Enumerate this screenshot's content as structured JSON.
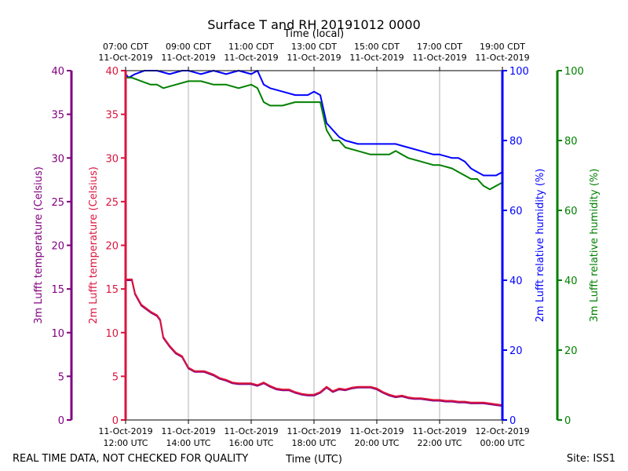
{
  "chart_data": {
    "type": "line",
    "title": "Surface T and RH 20191012 0000",
    "top_axis_label": "Time (local)",
    "xlabel": "Time (UTC)",
    "footer_left": "REAL TIME DATA, NOT CHECKED FOR QUALITY",
    "footer_right": "Site: ISS1",
    "x_range_hours_utc": [
      12,
      24
    ],
    "bottom_ticks": [
      {
        "h": 12,
        "line1": "11-Oct-2019",
        "line2": "12:00 UTC"
      },
      {
        "h": 14,
        "line1": "11-Oct-2019",
        "line2": "14:00 UTC"
      },
      {
        "h": 16,
        "line1": "11-Oct-2019",
        "line2": "16:00 UTC"
      },
      {
        "h": 18,
        "line1": "11-Oct-2019",
        "line2": "18:00 UTC"
      },
      {
        "h": 20,
        "line1": "11-Oct-2019",
        "line2": "20:00 UTC"
      },
      {
        "h": 22,
        "line1": "11-Oct-2019",
        "line2": "22:00 UTC"
      },
      {
        "h": 24,
        "line1": "12-Oct-2019",
        "line2": "00:00 UTC"
      }
    ],
    "top_ticks": [
      {
        "h": 12,
        "line1": "07:00 CDT",
        "line2": "11-Oct-2019"
      },
      {
        "h": 14,
        "line1": "09:00 CDT",
        "line2": "11-Oct-2019"
      },
      {
        "h": 16,
        "line1": "11:00 CDT",
        "line2": "11-Oct-2019"
      },
      {
        "h": 18,
        "line1": "13:00 CDT",
        "line2": "11-Oct-2019"
      },
      {
        "h": 20,
        "line1": "15:00 CDT",
        "line2": "11-Oct-2019"
      },
      {
        "h": 22,
        "line1": "17:00 CDT",
        "line2": "11-Oct-2019"
      },
      {
        "h": 24,
        "line1": "19:00 CDT",
        "line2": "11-Oct-2019"
      }
    ],
    "axes": [
      {
        "id": "t3m",
        "label": "3m Lufft temperature (Celsius)",
        "color": "#800080",
        "ylim": [
          0,
          40
        ],
        "ticks": [
          0,
          5,
          10,
          15,
          20,
          25,
          30,
          35,
          40
        ]
      },
      {
        "id": "t2m",
        "label": "2m Lufft temperature (Celsius)",
        "color": "#dc143c",
        "ylim": [
          0,
          40
        ],
        "ticks": [
          0,
          5,
          10,
          15,
          20,
          25,
          30,
          35,
          40
        ]
      },
      {
        "id": "rh2m",
        "label": "2m Lufft relative humidity (%)",
        "color": "#0000ff",
        "ylim": [
          0,
          100
        ],
        "ticks": [
          0,
          20,
          40,
          60,
          80,
          100
        ]
      },
      {
        "id": "rh3m",
        "label": "3m Lufft relative humidity (%)",
        "color": "#008000",
        "ylim": [
          0,
          100
        ],
        "ticks": [
          0,
          20,
          40,
          60,
          80,
          100
        ]
      }
    ],
    "series": [
      {
        "name": "2m Lufft temperature",
        "axis": "t2m",
        "color": "#dc143c",
        "x": [
          12.0,
          12.2,
          12.3,
          12.5,
          12.8,
          13.0,
          13.1,
          13.2,
          13.4,
          13.6,
          13.8,
          14.0,
          14.2,
          14.5,
          14.8,
          15.0,
          15.2,
          15.4,
          15.6,
          15.8,
          16.0,
          16.2,
          16.4,
          16.6,
          16.8,
          17.0,
          17.2,
          17.4,
          17.6,
          17.8,
          18.0,
          18.2,
          18.4,
          18.6,
          18.8,
          19.0,
          19.2,
          19.4,
          19.6,
          19.8,
          20.0,
          20.2,
          20.4,
          20.6,
          20.8,
          21.0,
          21.2,
          21.4,
          21.6,
          21.8,
          22.0,
          22.2,
          22.4,
          22.6,
          22.8,
          23.0,
          23.2,
          23.4,
          23.6,
          23.8,
          24.0
        ],
        "values": [
          16.1,
          16.1,
          14.5,
          13.2,
          12.4,
          12.0,
          11.5,
          9.5,
          8.5,
          7.7,
          7.3,
          6.0,
          5.6,
          5.6,
          5.2,
          4.8,
          4.6,
          4.3,
          4.2,
          4.2,
          4.2,
          4.0,
          4.3,
          3.9,
          3.6,
          3.5,
          3.5,
          3.2,
          3.0,
          2.9,
          2.9,
          3.2,
          3.8,
          3.3,
          3.6,
          3.5,
          3.7,
          3.8,
          3.8,
          3.8,
          3.6,
          3.2,
          2.9,
          2.7,
          2.8,
          2.6,
          2.5,
          2.5,
          2.4,
          2.3,
          2.3,
          2.2,
          2.2,
          2.1,
          2.1,
          2.0,
          2.0,
          2.0,
          1.9,
          1.8,
          1.7
        ]
      },
      {
        "name": "3m Lufft temperature",
        "axis": "t3m",
        "color": "#800080",
        "x": [
          12.0,
          12.2,
          12.3,
          12.5,
          12.8,
          13.0,
          13.1,
          13.2,
          13.4,
          13.6,
          13.8,
          14.0,
          14.2,
          14.5,
          14.8,
          15.0,
          15.2,
          15.4,
          15.6,
          15.8,
          16.0,
          16.2,
          16.4,
          16.6,
          16.8,
          17.0,
          17.2,
          17.4,
          17.6,
          17.8,
          18.0,
          18.2,
          18.4,
          18.6,
          18.8,
          19.0,
          19.2,
          19.4,
          19.6,
          19.8,
          20.0,
          20.2,
          20.4,
          20.6,
          20.8,
          21.0,
          21.2,
          21.4,
          21.6,
          21.8,
          22.0,
          22.2,
          22.4,
          22.6,
          22.8,
          23.0,
          23.2,
          23.4,
          23.6,
          23.8,
          24.0
        ],
        "values": [
          16.0,
          16.0,
          14.4,
          13.1,
          12.3,
          11.9,
          11.4,
          9.4,
          8.4,
          7.6,
          7.2,
          5.9,
          5.5,
          5.5,
          5.1,
          4.7,
          4.5,
          4.2,
          4.1,
          4.1,
          4.1,
          3.9,
          4.2,
          3.8,
          3.5,
          3.4,
          3.4,
          3.1,
          2.9,
          2.8,
          2.8,
          3.1,
          3.7,
          3.2,
          3.5,
          3.4,
          3.6,
          3.7,
          3.7,
          3.7,
          3.5,
          3.1,
          2.8,
          2.6,
          2.7,
          2.5,
          2.4,
          2.4,
          2.3,
          2.2,
          2.2,
          2.1,
          2.1,
          2.0,
          2.0,
          1.9,
          1.9,
          1.9,
          1.8,
          1.7,
          1.6
        ]
      },
      {
        "name": "2m Lufft relative humidity",
        "axis": "rh2m",
        "color": "#0000ff",
        "x": [
          12.0,
          12.1,
          12.3,
          12.6,
          13.0,
          13.4,
          13.8,
          14.0,
          14.4,
          14.8,
          15.2,
          15.6,
          16.0,
          16.2,
          16.4,
          16.6,
          17.0,
          17.4,
          17.8,
          18.0,
          18.2,
          18.4,
          18.6,
          18.8,
          19.0,
          19.4,
          19.8,
          20.0,
          20.4,
          20.6,
          21.0,
          21.4,
          21.8,
          22.0,
          22.4,
          22.6,
          22.8,
          23.0,
          23.2,
          23.4,
          23.6,
          23.8,
          24.0
        ],
        "values": [
          99,
          98,
          99,
          100,
          100,
          99,
          100,
          100,
          99,
          100,
          99,
          100,
          99,
          100,
          96,
          95,
          94,
          93,
          93,
          94,
          93,
          85,
          83,
          81,
          80,
          79,
          79,
          79,
          79,
          79,
          78,
          77,
          76,
          76,
          75,
          75,
          74,
          72,
          71,
          70,
          70,
          70,
          71
        ]
      },
      {
        "name": "3m Lufft relative humidity",
        "axis": "rh3m",
        "color": "#008000",
        "x": [
          12.0,
          12.2,
          12.5,
          12.8,
          13.0,
          13.2,
          13.6,
          14.0,
          14.4,
          14.8,
          15.2,
          15.6,
          16.0,
          16.2,
          16.4,
          16.6,
          17.0,
          17.4,
          17.8,
          18.0,
          18.2,
          18.4,
          18.6,
          18.8,
          19.0,
          19.4,
          19.8,
          20.0,
          20.4,
          20.6,
          21.0,
          21.4,
          21.8,
          22.0,
          22.4,
          22.6,
          22.8,
          23.0,
          23.2,
          23.4,
          23.6,
          23.8,
          24.0
        ],
        "values": [
          98,
          98,
          97,
          96,
          96,
          95,
          96,
          97,
          97,
          96,
          96,
          95,
          96,
          95,
          91,
          90,
          90,
          91,
          91,
          91,
          91,
          83,
          80,
          80,
          78,
          77,
          76,
          76,
          76,
          77,
          75,
          74,
          73,
          73,
          72,
          71,
          70,
          69,
          69,
          67,
          66,
          67,
          68
        ]
      }
    ]
  }
}
